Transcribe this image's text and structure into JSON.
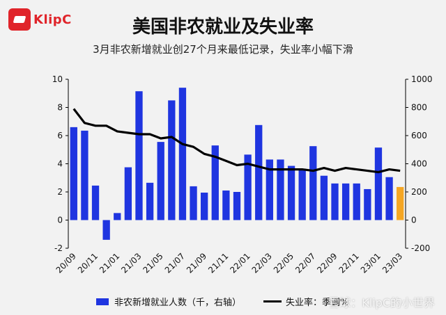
{
  "brand": {
    "logo_text": "KlipC",
    "accent": "#e0242a"
  },
  "header": {
    "title": "美国非农就业及失业率",
    "subtitle": "3月非农新增就业创27个月来最低记录，失业率小幅下滑"
  },
  "legend": {
    "bar_label": "非农新增就业人数（千，右轴）",
    "line_label": "失业率：季调%"
  },
  "watermark": "雪球：KlipC的小世界",
  "colors": {
    "bar": "#1f35e0",
    "bar_highlight": "#f5a623",
    "line": "#000000"
  },
  "chart_data": {
    "type": "bar+line",
    "x_tick_labels": [
      "20/09",
      "20/11",
      "21/01",
      "21/03",
      "21/05",
      "21/07",
      "21/09",
      "21/11",
      "22/01",
      "22/03",
      "22/05",
      "22/07",
      "22/09",
      "22/11",
      "23/01",
      "23/03"
    ],
    "x_tick_every": 2,
    "left_axis": {
      "range": [
        -2,
        10
      ],
      "ticks": [
        -2,
        0,
        2,
        4,
        6,
        8,
        10
      ]
    },
    "right_axis": {
      "range": [
        -200,
        1000
      ],
      "ticks": [
        -200,
        0,
        200,
        400,
        600,
        800,
        1000
      ]
    },
    "series": [
      {
        "name": "非农新增就业人数（千，右轴）",
        "type": "bar",
        "axis": "right",
        "values": [
          660,
          635,
          245,
          -140,
          50,
          375,
          915,
          265,
          555,
          850,
          940,
          240,
          195,
          530,
          210,
          200,
          465,
          675,
          430,
          430,
          385,
          365,
          525,
          315,
          260,
          260,
          260,
          220,
          515,
          305,
          235
        ],
        "highlight_last": true
      },
      {
        "name": "失业率：季调%",
        "type": "line",
        "axis": "left",
        "values": [
          7.9,
          6.9,
          6.7,
          6.7,
          6.3,
          6.2,
          6.1,
          6.1,
          5.8,
          5.9,
          5.4,
          5.2,
          4.7,
          4.5,
          4.2,
          3.9,
          4.0,
          3.8,
          3.6,
          3.6,
          3.6,
          3.6,
          3.5,
          3.7,
          3.5,
          3.7,
          3.6,
          3.5,
          3.4,
          3.6,
          3.5
        ]
      }
    ]
  }
}
